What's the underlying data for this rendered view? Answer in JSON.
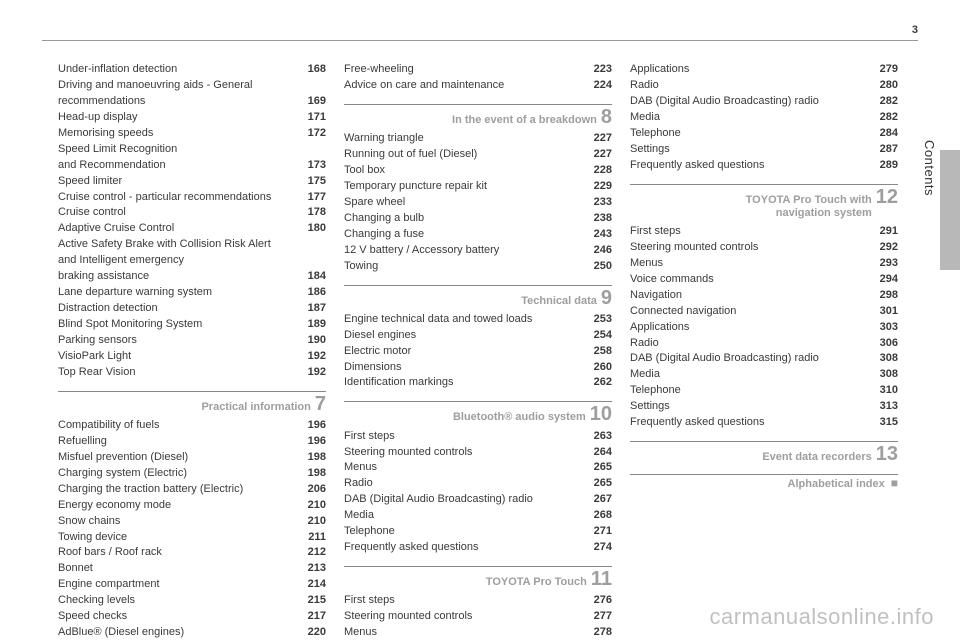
{
  "page_number": "3",
  "vertical_label": "Contents",
  "watermark": "carmanualsonline.info",
  "columns": [
    {
      "items": [
        {
          "type": "row",
          "label": "Under-inflation detection",
          "page": "168"
        },
        {
          "type": "multi",
          "lines": [
            "Driving and manoeuvring aids - General",
            "recommendations"
          ],
          "page": "169"
        },
        {
          "type": "row",
          "label": "Head-up display",
          "page": "171"
        },
        {
          "type": "row",
          "label": "Memorising speeds",
          "page": "172"
        },
        {
          "type": "multi",
          "lines": [
            "Speed Limit Recognition",
            "and Recommendation"
          ],
          "page": "173"
        },
        {
          "type": "row",
          "label": "Speed limiter",
          "page": "175"
        },
        {
          "type": "row",
          "label": "Cruise control - particular recommendations",
          "page": "177"
        },
        {
          "type": "row",
          "label": "Cruise control",
          "page": "178"
        },
        {
          "type": "row",
          "label": "Adaptive Cruise Control",
          "page": "180"
        },
        {
          "type": "multi",
          "lines": [
            "Active Safety Brake with Collision Risk Alert",
            "and Intelligent emergency",
            "braking assistance"
          ],
          "page": "184"
        },
        {
          "type": "row",
          "label": "Lane departure warning system",
          "page": "186"
        },
        {
          "type": "row",
          "label": "Distraction detection",
          "page": "187"
        },
        {
          "type": "row",
          "label": "Blind Spot Monitoring System",
          "page": "189"
        },
        {
          "type": "row",
          "label": "Parking sensors",
          "page": "190"
        },
        {
          "type": "row",
          "label": "VisioPark Light",
          "page": "192"
        },
        {
          "type": "row",
          "label": "Top Rear Vision",
          "page": "192"
        },
        {
          "type": "section",
          "title": "Practical information",
          "num": "7"
        },
        {
          "type": "row",
          "label": "Compatibility of fuels",
          "page": "196"
        },
        {
          "type": "row",
          "label": "Refuelling",
          "page": "196"
        },
        {
          "type": "row",
          "label": "Misfuel prevention (Diesel)",
          "page": "198"
        },
        {
          "type": "row",
          "label": "Charging system (Electric)",
          "page": "198"
        },
        {
          "type": "row",
          "label": "Charging the traction battery (Electric)",
          "page": "206"
        },
        {
          "type": "row",
          "label": "Energy economy mode",
          "page": "210"
        },
        {
          "type": "row",
          "label": "Snow chains",
          "page": "210"
        },
        {
          "type": "row",
          "label": "Towing device",
          "page": "211"
        },
        {
          "type": "row",
          "label": "Roof bars / Roof rack",
          "page": "212"
        },
        {
          "type": "row",
          "label": "Bonnet",
          "page": "213"
        },
        {
          "type": "row",
          "label": "Engine compartment",
          "page": "214"
        },
        {
          "type": "row",
          "label": "Checking levels",
          "page": "215"
        },
        {
          "type": "row",
          "label": "Speed checks",
          "page": "217"
        },
        {
          "type": "row",
          "label": "AdBlue® (Diesel engines)",
          "page": "220"
        }
      ]
    },
    {
      "items": [
        {
          "type": "row",
          "label": "Free-wheeling",
          "page": "223"
        },
        {
          "type": "row",
          "label": "Advice on care and maintenance",
          "page": "224"
        },
        {
          "type": "section",
          "title": "In the event of a breakdown",
          "num": "8"
        },
        {
          "type": "row",
          "label": "Warning triangle",
          "page": "227"
        },
        {
          "type": "row",
          "label": "Running out of fuel (Diesel)",
          "page": "227"
        },
        {
          "type": "row",
          "label": "Tool box",
          "page": "228"
        },
        {
          "type": "row",
          "label": "Temporary puncture repair kit",
          "page": "229"
        },
        {
          "type": "row",
          "label": "Spare wheel",
          "page": "233"
        },
        {
          "type": "row",
          "label": "Changing a bulb",
          "page": "238"
        },
        {
          "type": "row",
          "label": "Changing a fuse",
          "page": "243"
        },
        {
          "type": "row",
          "label": "12 V battery / Accessory battery",
          "page": "246"
        },
        {
          "type": "row",
          "label": "Towing",
          "page": "250"
        },
        {
          "type": "section",
          "title": "Technical data",
          "num": "9"
        },
        {
          "type": "row",
          "label": "Engine technical data and towed loads",
          "page": "253"
        },
        {
          "type": "row",
          "label": "Diesel engines",
          "page": "254"
        },
        {
          "type": "row",
          "label": "Electric motor",
          "page": "258"
        },
        {
          "type": "row",
          "label": "Dimensions",
          "page": "260"
        },
        {
          "type": "row",
          "label": "Identification markings",
          "page": "262"
        },
        {
          "type": "section",
          "title": "Bluetooth® audio system",
          "num": "10"
        },
        {
          "type": "row",
          "label": "First steps",
          "page": "263"
        },
        {
          "type": "row",
          "label": "Steering mounted controls",
          "page": "264"
        },
        {
          "type": "row",
          "label": "Menus",
          "page": "265"
        },
        {
          "type": "row",
          "label": "Radio",
          "page": "265"
        },
        {
          "type": "row",
          "label": "DAB (Digital Audio Broadcasting) radio",
          "page": "267"
        },
        {
          "type": "row",
          "label": "Media",
          "page": "268"
        },
        {
          "type": "row",
          "label": "Telephone",
          "page": "271"
        },
        {
          "type": "row",
          "label": "Frequently asked questions",
          "page": "274"
        },
        {
          "type": "section",
          "title": "TOYOTA Pro Touch",
          "num": "11"
        },
        {
          "type": "row",
          "label": "First steps",
          "page": "276"
        },
        {
          "type": "row",
          "label": "Steering mounted controls",
          "page": "277"
        },
        {
          "type": "row",
          "label": "Menus",
          "page": "278"
        }
      ]
    },
    {
      "items": [
        {
          "type": "row",
          "label": "Applications",
          "page": "279"
        },
        {
          "type": "row",
          "label": "Radio",
          "page": "280"
        },
        {
          "type": "row",
          "label": "DAB (Digital Audio Broadcasting) radio",
          "page": "282"
        },
        {
          "type": "row",
          "label": "Media",
          "page": "282"
        },
        {
          "type": "row",
          "label": "Telephone",
          "page": "284"
        },
        {
          "type": "row",
          "label": "Settings",
          "page": "287"
        },
        {
          "type": "row",
          "label": "Frequently asked questions",
          "page": "289"
        },
        {
          "type": "section",
          "title_lines": [
            "TOYOTA Pro Touch with",
            "navigation system"
          ],
          "num": "12"
        },
        {
          "type": "row",
          "label": "First steps",
          "page": "291"
        },
        {
          "type": "row",
          "label": "Steering mounted controls",
          "page": "292"
        },
        {
          "type": "row",
          "label": "Menus",
          "page": "293"
        },
        {
          "type": "row",
          "label": "Voice commands",
          "page": "294"
        },
        {
          "type": "row",
          "label": "Navigation",
          "page": "298"
        },
        {
          "type": "row",
          "label": "Connected navigation",
          "page": "301"
        },
        {
          "type": "row",
          "label": "Applications",
          "page": "303"
        },
        {
          "type": "row",
          "label": "Radio",
          "page": "306"
        },
        {
          "type": "row",
          "label": "DAB (Digital Audio Broadcasting) radio",
          "page": "308"
        },
        {
          "type": "row",
          "label": "Media",
          "page": "308"
        },
        {
          "type": "row",
          "label": "Telephone",
          "page": "310"
        },
        {
          "type": "row",
          "label": "Settings",
          "page": "313"
        },
        {
          "type": "row",
          "label": "Frequently asked questions",
          "page": "315"
        },
        {
          "type": "section",
          "title": "Event data recorders",
          "num": "13"
        },
        {
          "type": "section",
          "title": "Alphabetical index",
          "bullet": "■"
        }
      ]
    }
  ]
}
